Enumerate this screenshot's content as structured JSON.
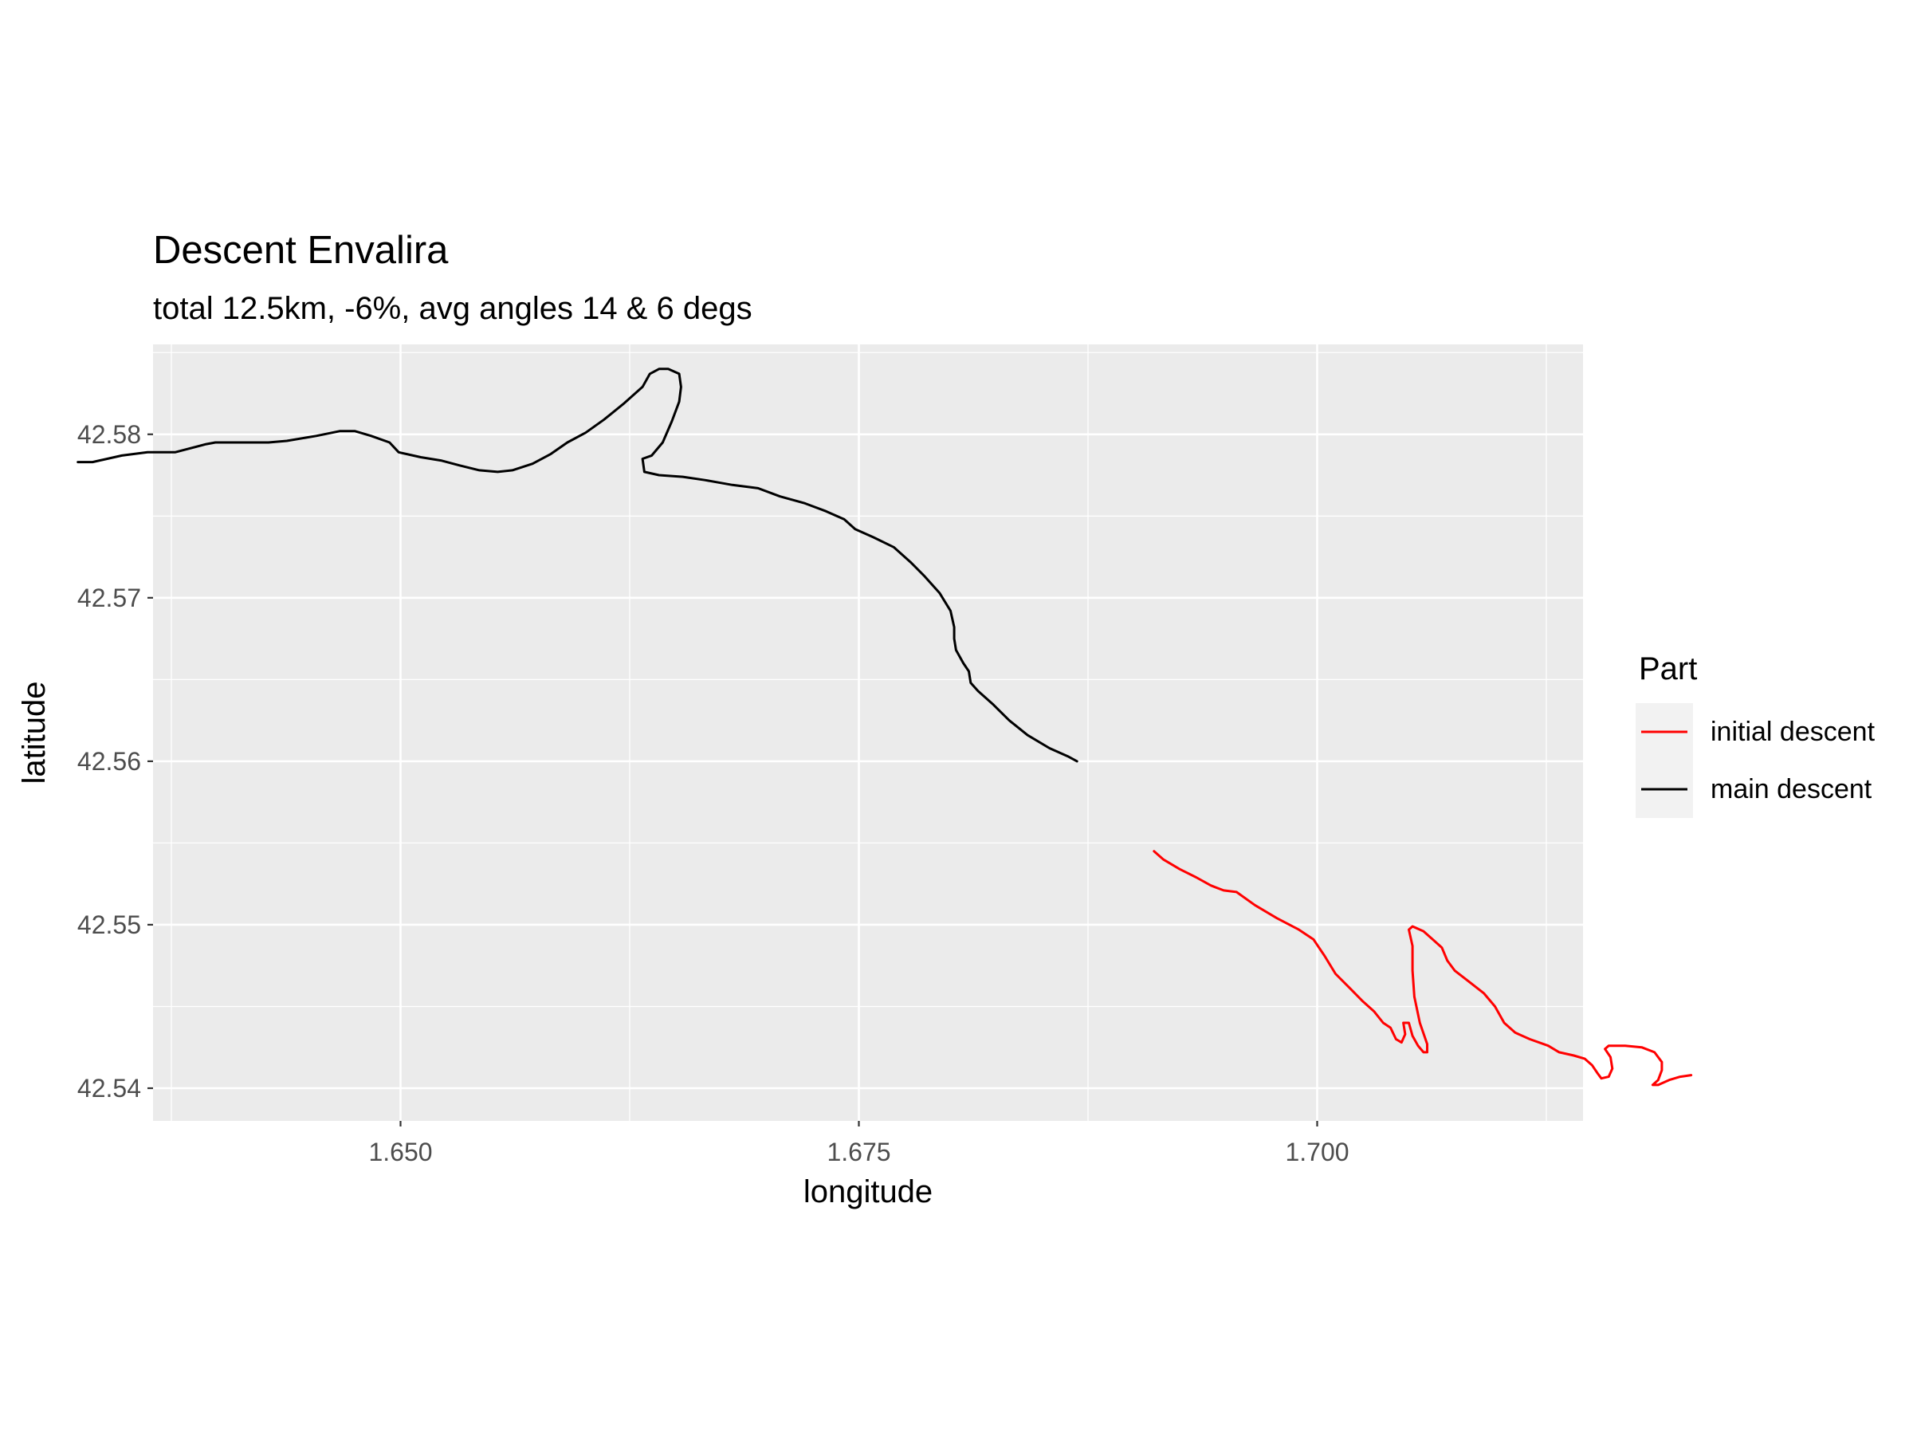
{
  "chart_data": {
    "type": "line",
    "title": "Descent Envalira",
    "subtitle": "total 12.5km, -6%, avg angles 14 & 6 degs",
    "xlabel": "longitude",
    "ylabel": "latitude",
    "xlim": [
      1.6365,
      1.7145
    ],
    "ylim": [
      42.538,
      42.5855
    ],
    "x_ticks": [
      1.65,
      1.675,
      1.7
    ],
    "x_tick_labels": [
      "1.650",
      "1.675",
      "1.700"
    ],
    "y_ticks": [
      42.54,
      42.55,
      42.56,
      42.57,
      42.58
    ],
    "y_tick_labels": [
      "42.54",
      "42.55",
      "42.56",
      "42.57",
      "42.58"
    ],
    "grid": true,
    "legend": {
      "title": "Part",
      "position": "right",
      "entries": [
        {
          "label": "initial descent",
          "color": "#ff0000"
        },
        {
          "label": "main descent",
          "color": "#000000"
        }
      ]
    },
    "series": [
      {
        "name": "main descent",
        "color": "#000000",
        "points": [
          [
            1.6324,
            42.5783
          ],
          [
            1.6332,
            42.5783
          ],
          [
            1.6348,
            42.5787
          ],
          [
            1.6362,
            42.5789
          ],
          [
            1.6377,
            42.5789
          ],
          [
            1.6394,
            42.5794
          ],
          [
            1.6399,
            42.5795
          ],
          [
            1.6412,
            42.5795
          ],
          [
            1.6428,
            42.5795
          ],
          [
            1.6438,
            42.5796
          ],
          [
            1.6454,
            42.5799
          ],
          [
            1.6467,
            42.5802
          ],
          [
            1.6475,
            42.5802
          ],
          [
            1.6484,
            42.5799
          ],
          [
            1.6494,
            42.5795
          ],
          [
            1.6499,
            42.5789
          ],
          [
            1.6511,
            42.5786
          ],
          [
            1.6522,
            42.5784
          ],
          [
            1.6532,
            42.5781
          ],
          [
            1.6543,
            42.5778
          ],
          [
            1.6553,
            42.5777
          ],
          [
            1.6561,
            42.5778
          ],
          [
            1.6572,
            42.5782
          ],
          [
            1.6582,
            42.5788
          ],
          [
            1.6591,
            42.5795
          ],
          [
            1.6601,
            42.5801
          ],
          [
            1.6611,
            42.5809
          ],
          [
            1.6622,
            42.5819
          ],
          [
            1.6632,
            42.5829
          ],
          [
            1.6636,
            42.5837
          ],
          [
            1.6641,
            42.584
          ],
          [
            1.6646,
            42.584
          ],
          [
            1.6652,
            42.5837
          ],
          [
            1.6653,
            42.5829
          ],
          [
            1.6652,
            42.582
          ],
          [
            1.6648,
            42.5808
          ],
          [
            1.6643,
            42.5795
          ],
          [
            1.6637,
            42.5787
          ],
          [
            1.6632,
            42.5785
          ],
          [
            1.6633,
            42.5777
          ],
          [
            1.6641,
            42.5775
          ],
          [
            1.6654,
            42.5774
          ],
          [
            1.6666,
            42.5772
          ],
          [
            1.6681,
            42.5769
          ],
          [
            1.6695,
            42.5767
          ],
          [
            1.6707,
            42.5762
          ],
          [
            1.672,
            42.5758
          ],
          [
            1.6732,
            42.5753
          ],
          [
            1.6742,
            42.5748
          ],
          [
            1.6748,
            42.5742
          ],
          [
            1.6758,
            42.5737
          ],
          [
            1.6769,
            42.5731
          ],
          [
            1.6778,
            42.5722
          ],
          [
            1.6786,
            42.5713
          ],
          [
            1.6794,
            42.5703
          ],
          [
            1.68,
            42.5692
          ],
          [
            1.6802,
            42.5682
          ],
          [
            1.6802,
            42.5675
          ],
          [
            1.6803,
            42.5668
          ],
          [
            1.6807,
            42.566
          ],
          [
            1.681,
            42.5655
          ],
          [
            1.6811,
            42.5648
          ],
          [
            1.6815,
            42.5643
          ],
          [
            1.6823,
            42.5635
          ],
          [
            1.6832,
            42.5625
          ],
          [
            1.6842,
            42.5616
          ],
          [
            1.6854,
            42.5608
          ],
          [
            1.6864,
            42.5603
          ],
          [
            1.6869,
            42.56
          ]
        ]
      },
      {
        "name": "initial descent",
        "color": "#ff0000",
        "points": [
          [
            1.6911,
            42.5545
          ],
          [
            1.6916,
            42.554
          ],
          [
            1.6925,
            42.5534
          ],
          [
            1.6934,
            42.5529
          ],
          [
            1.6942,
            42.5524
          ],
          [
            1.6949,
            42.5521
          ],
          [
            1.6956,
            42.552
          ],
          [
            1.6966,
            42.5512
          ],
          [
            1.6978,
            42.5504
          ],
          [
            1.699,
            42.5497
          ],
          [
            1.6998,
            42.5491
          ],
          [
            1.7004,
            42.5481
          ],
          [
            1.701,
            42.547
          ],
          [
            1.7018,
            42.5461
          ],
          [
            1.7025,
            42.5453
          ],
          [
            1.7031,
            42.5447
          ],
          [
            1.7036,
            42.544
          ],
          [
            1.704,
            42.5437
          ],
          [
            1.7043,
            42.543
          ],
          [
            1.7046,
            42.5428
          ],
          [
            1.7048,
            42.5433
          ],
          [
            1.7047,
            42.544
          ],
          [
            1.705,
            42.544
          ],
          [
            1.7052,
            42.5432
          ],
          [
            1.7055,
            42.5426
          ],
          [
            1.7058,
            42.5422
          ],
          [
            1.706,
            42.5422
          ],
          [
            1.706,
            42.5427
          ],
          [
            1.7056,
            42.544
          ],
          [
            1.7053,
            42.5456
          ],
          [
            1.7052,
            42.5472
          ],
          [
            1.7052,
            42.5487
          ],
          [
            1.705,
            42.5497
          ],
          [
            1.7052,
            42.5499
          ],
          [
            1.7058,
            42.5496
          ],
          [
            1.7064,
            42.549
          ],
          [
            1.7068,
            42.5486
          ],
          [
            1.7071,
            42.5478
          ],
          [
            1.7075,
            42.5472
          ],
          [
            1.7083,
            42.5465
          ],
          [
            1.7091,
            42.5458
          ],
          [
            1.7097,
            42.545
          ],
          [
            1.7102,
            42.544
          ],
          [
            1.7108,
            42.5434
          ],
          [
            1.7116,
            42.543
          ],
          [
            1.7126,
            42.5426
          ],
          [
            1.7132,
            42.5422
          ],
          [
            1.714,
            42.542
          ],
          [
            1.7146,
            42.5418
          ],
          [
            1.715,
            42.5414
          ],
          [
            1.7153,
            42.5409
          ],
          [
            1.7155,
            42.5406
          ],
          [
            1.7159,
            42.5407
          ],
          [
            1.7161,
            42.5412
          ],
          [
            1.716,
            42.5419
          ],
          [
            1.7157,
            42.5424
          ],
          [
            1.7159,
            42.5426
          ],
          [
            1.7168,
            42.5426
          ],
          [
            1.7177,
            42.5425
          ],
          [
            1.7184,
            42.5422
          ],
          [
            1.7188,
            42.5416
          ],
          [
            1.7188,
            42.5411
          ],
          [
            1.7186,
            42.5405
          ],
          [
            1.7183,
            42.5402
          ],
          [
            1.7186,
            42.5402
          ],
          [
            1.7192,
            42.5405
          ],
          [
            1.7198,
            42.5407
          ],
          [
            1.7204,
            42.5408
          ]
        ]
      }
    ]
  }
}
